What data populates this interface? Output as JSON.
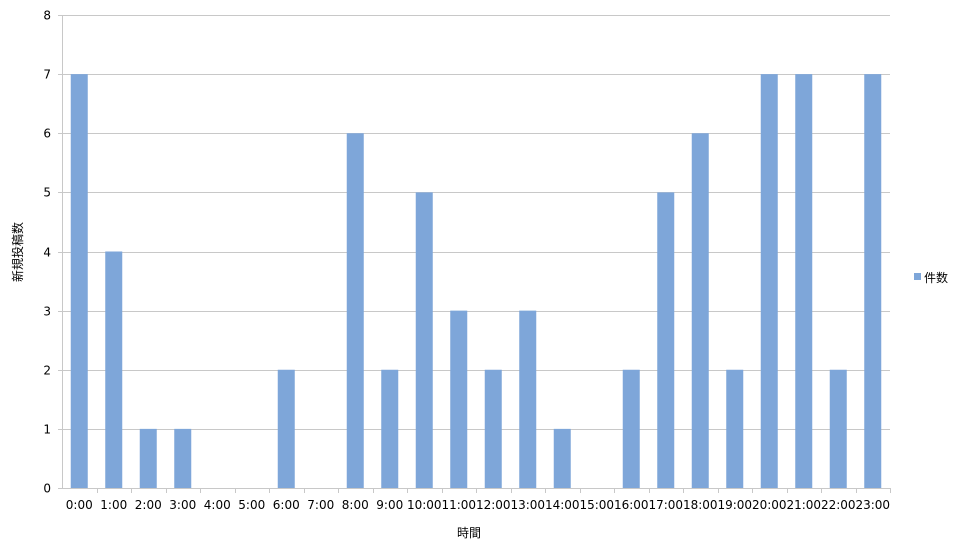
{
  "chart_data": {
    "type": "bar",
    "title": "",
    "xlabel": "時間",
    "ylabel": "新規投稿数",
    "ylim": [
      0,
      8
    ],
    "yticks": [
      0,
      1,
      2,
      3,
      4,
      5,
      6,
      7,
      8
    ],
    "grid": true,
    "legend_position": "right",
    "categories": [
      "0:00",
      "1:00",
      "2:00",
      "3:00",
      "4:00",
      "5:00",
      "6:00",
      "7:00",
      "8:00",
      "9:00",
      "10:00",
      "11:00",
      "12:00",
      "13:00",
      "14:00",
      "15:00",
      "16:00",
      "17:00",
      "18:00",
      "19:00",
      "20:00",
      "21:00",
      "22:00",
      "23:00"
    ],
    "series": [
      {
        "name": "件数",
        "color": "#7EA6D9",
        "values": [
          7,
          4,
          1,
          1,
          0,
          0,
          2,
          0,
          6,
          2,
          5,
          3,
          2,
          3,
          1,
          0,
          2,
          5,
          6,
          2,
          7,
          7,
          2,
          7
        ]
      }
    ]
  }
}
